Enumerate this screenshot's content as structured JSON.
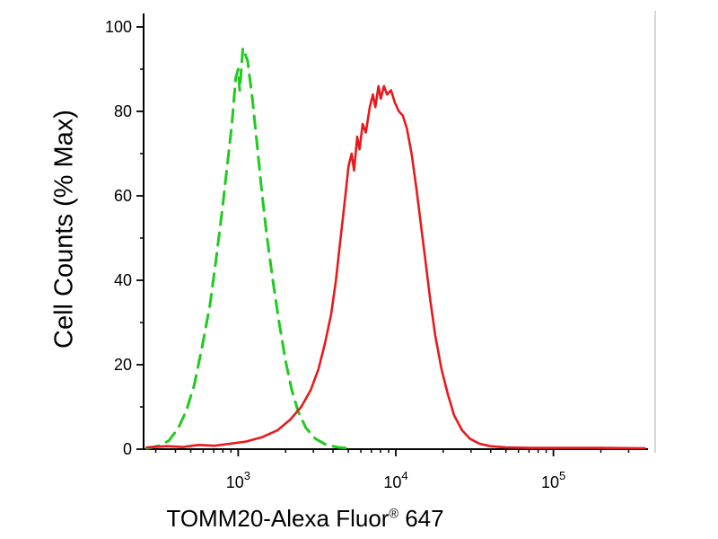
{
  "figure": {
    "background": "#ffffff"
  },
  "chart_data": {
    "type": "line",
    "title": "",
    "xlabel": "TOMM20-Alexa Fluor® 647",
    "xlabel_main": "TOMM20-Alexa Fluor",
    "xlabel_reg": "®",
    "xlabel_suffix": " 647",
    "ylabel": "Cell Counts (% Max)",
    "x_scale": "log10",
    "xlim_log": [
      2.4,
      5.6
    ],
    "ylim": [
      0,
      100
    ],
    "y_ticks": [
      0,
      20,
      40,
      60,
      80,
      100
    ],
    "y_minor_ticks": [
      10,
      30,
      50,
      70,
      90
    ],
    "x_ticks_exp": [
      3,
      4,
      5
    ],
    "grid": false,
    "legend": "none",
    "series": [
      {
        "name": "green-dashed-curve",
        "color": "#1ecb1e",
        "line_style": "dashed",
        "stroke_width": 3,
        "peak": {
          "x_log10": 3.03,
          "y": 95
        },
        "points": [
          [
            2.42,
            0.2
          ],
          [
            2.5,
            0.8
          ],
          [
            2.56,
            2
          ],
          [
            2.62,
            5
          ],
          [
            2.67,
            9
          ],
          [
            2.72,
            15
          ],
          [
            2.77,
            24
          ],
          [
            2.82,
            34
          ],
          [
            2.86,
            45
          ],
          [
            2.9,
            57
          ],
          [
            2.93,
            67
          ],
          [
            2.96,
            77
          ],
          [
            2.985,
            88
          ],
          [
            3.0,
            90
          ],
          [
            3.01,
            85
          ],
          [
            3.03,
            95
          ],
          [
            3.06,
            92
          ],
          [
            3.09,
            83
          ],
          [
            3.12,
            72
          ],
          [
            3.15,
            61
          ],
          [
            3.18,
            51
          ],
          [
            3.22,
            40
          ],
          [
            3.26,
            30
          ],
          [
            3.3,
            21
          ],
          [
            3.34,
            14
          ],
          [
            3.38,
            9
          ],
          [
            3.43,
            5
          ],
          [
            3.49,
            2.5
          ],
          [
            3.56,
            1
          ],
          [
            3.64,
            0.4
          ],
          [
            3.72,
            0.2
          ]
        ]
      },
      {
        "name": "red-solid-curve",
        "color": "#e8191d",
        "line_style": "solid",
        "stroke_width": 2.6,
        "peak": {
          "x_log10": 3.91,
          "y": 86
        },
        "points": [
          [
            2.42,
            0.4
          ],
          [
            2.55,
            0.7
          ],
          [
            2.65,
            0.5
          ],
          [
            2.75,
            1.0
          ],
          [
            2.85,
            0.8
          ],
          [
            2.95,
            1.3
          ],
          [
            3.05,
            1.8
          ],
          [
            3.15,
            2.8
          ],
          [
            3.25,
            4.5
          ],
          [
            3.33,
            7
          ],
          [
            3.4,
            10
          ],
          [
            3.46,
            14
          ],
          [
            3.51,
            19
          ],
          [
            3.55,
            25
          ],
          [
            3.59,
            32
          ],
          [
            3.62,
            40
          ],
          [
            3.65,
            50
          ],
          [
            3.68,
            60
          ],
          [
            3.7,
            67
          ],
          [
            3.72,
            70
          ],
          [
            3.735,
            66
          ],
          [
            3.755,
            74
          ],
          [
            3.77,
            71
          ],
          [
            3.79,
            77
          ],
          [
            3.81,
            75
          ],
          [
            3.835,
            81
          ],
          [
            3.855,
            84
          ],
          [
            3.87,
            81
          ],
          [
            3.89,
            86
          ],
          [
            3.905,
            83
          ],
          [
            3.925,
            86
          ],
          [
            3.945,
            84
          ],
          [
            3.97,
            85
          ],
          [
            3.995,
            82
          ],
          [
            4.02,
            80
          ],
          [
            4.045,
            79
          ],
          [
            4.07,
            76
          ],
          [
            4.1,
            70
          ],
          [
            4.13,
            62
          ],
          [
            4.16,
            53
          ],
          [
            4.19,
            44
          ],
          [
            4.22,
            35
          ],
          [
            4.25,
            27
          ],
          [
            4.29,
            19
          ],
          [
            4.33,
            13
          ],
          [
            4.37,
            8
          ],
          [
            4.42,
            4.5
          ],
          [
            4.47,
            2.5
          ],
          [
            4.53,
            1.3
          ],
          [
            4.6,
            0.7
          ],
          [
            4.7,
            0.4
          ],
          [
            4.85,
            0.3
          ],
          [
            5.05,
            0.3
          ],
          [
            5.3,
            0.3
          ],
          [
            5.58,
            0.2
          ]
        ]
      }
    ]
  }
}
